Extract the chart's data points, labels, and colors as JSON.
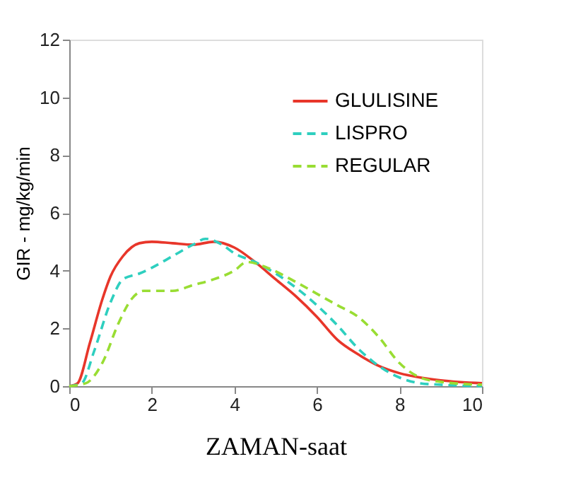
{
  "chart_data": {
    "type": "line",
    "xlabel": "ZAMAN-saat",
    "ylabel": "GIR - mg/kg/min",
    "xlim": [
      0,
      10
    ],
    "ylim": [
      0,
      12
    ],
    "xticks": [
      0,
      2,
      4,
      6,
      8,
      10
    ],
    "yticks": [
      0,
      2,
      4,
      6,
      8,
      10,
      12
    ],
    "grid": false,
    "legend": "top right",
    "marker": "none",
    "series": [
      {
        "name": "GLULISINE",
        "color": "#e8362a",
        "line_style": "solid",
        "x": [
          0,
          0.2,
          0.5,
          0.8,
          1,
          1.3,
          1.7,
          2,
          2.5,
          3,
          3.5,
          4,
          4.5,
          5,
          5.5,
          6,
          6.5,
          7,
          7.5,
          8,
          8.5,
          9,
          10
        ],
        "values": [
          0,
          0.1,
          1.5,
          3,
          3.8,
          4.5,
          4.95,
          5,
          4.95,
          4.9,
          5,
          4.8,
          4.3,
          3.7,
          3.1,
          2.4,
          1.6,
          1.1,
          0.7,
          0.45,
          0.3,
          0.2,
          0.1
        ]
      },
      {
        "name": "LISPRO",
        "color": "#2ecfbf",
        "line_style": "dashed",
        "x": [
          0,
          0.3,
          0.6,
          1,
          1.3,
          1.7,
          2,
          2.5,
          3,
          3.3,
          3.7,
          4,
          4.5,
          5,
          5.5,
          6,
          6.5,
          7,
          7.5,
          8,
          8.5,
          9,
          10
        ],
        "values": [
          0,
          0.1,
          1.2,
          2.9,
          3.7,
          3.9,
          4.1,
          4.5,
          4.9,
          5.1,
          4.9,
          4.6,
          4.3,
          3.9,
          3.4,
          2.8,
          2.1,
          1.3,
          0.7,
          0.3,
          0.1,
          0.05,
          0
        ]
      },
      {
        "name": "REGULAR",
        "color": "#99dd33",
        "line_style": "dashed",
        "x": [
          0,
          0.4,
          0.8,
          1.2,
          1.5,
          1.8,
          2,
          2.5,
          3,
          3.5,
          4,
          4.3,
          4.8,
          5.5,
          6,
          6.5,
          7,
          7.5,
          8,
          8.5,
          9,
          10
        ],
        "values": [
          0,
          0.1,
          0.8,
          2.2,
          3,
          3.3,
          3.3,
          3.3,
          3.5,
          3.7,
          4,
          4.3,
          4.1,
          3.6,
          3.2,
          2.8,
          2.4,
          1.7,
          0.8,
          0.3,
          0.15,
          0.05
        ]
      }
    ]
  }
}
